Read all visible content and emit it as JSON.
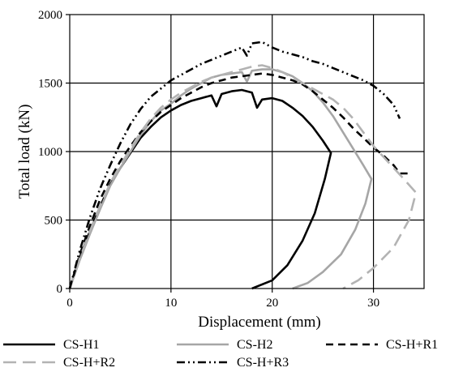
{
  "chart_data": {
    "type": "line",
    "xlabel": "Displacement (mm)",
    "ylabel": "Total load (kN)",
    "xlim": [
      0,
      35
    ],
    "ylim": [
      0,
      2000
    ],
    "xticks": [
      "0",
      "10",
      "20",
      "30"
    ],
    "xtick_values": [
      0,
      10,
      20,
      30
    ],
    "yticks": [
      "0",
      "500",
      "1000",
      "1500",
      "2000"
    ],
    "ytick_values": [
      0,
      500,
      1000,
      1500,
      2000
    ],
    "grid": true,
    "legend_position": "bottom",
    "series": [
      {
        "name": "CS-H1",
        "color": "#000000",
        "dash": "solid",
        "points": [
          [
            0,
            0
          ],
          [
            1,
            230
          ],
          [
            2,
            420
          ],
          [
            3,
            600
          ],
          [
            4,
            760
          ],
          [
            5,
            880
          ],
          [
            6,
            990
          ],
          [
            7,
            1100
          ],
          [
            8,
            1180
          ],
          [
            9,
            1250
          ],
          [
            10,
            1300
          ],
          [
            11,
            1340
          ],
          [
            12,
            1370
          ],
          [
            13,
            1390
          ],
          [
            14,
            1410
          ],
          [
            14.5,
            1330
          ],
          [
            15,
            1420
          ],
          [
            16,
            1440
          ],
          [
            17,
            1450
          ],
          [
            18,
            1430
          ],
          [
            18.5,
            1320
          ],
          [
            19,
            1380
          ],
          [
            20,
            1390
          ],
          [
            21,
            1370
          ],
          [
            22,
            1320
          ],
          [
            23,
            1260
          ],
          [
            24,
            1180
          ],
          [
            25,
            1080
          ],
          [
            25.8,
            990
          ],
          [
            25.2,
            800
          ],
          [
            24.2,
            550
          ],
          [
            23,
            350
          ],
          [
            21.5,
            170
          ],
          [
            20,
            60
          ],
          [
            18,
            0
          ]
        ]
      },
      {
        "name": "CS-H2",
        "color": "#a6a6a6",
        "dash": "solid",
        "points": [
          [
            0,
            0
          ],
          [
            1,
            210
          ],
          [
            2,
            400
          ],
          [
            3,
            580
          ],
          [
            4,
            750
          ],
          [
            5,
            880
          ],
          [
            6,
            1000
          ],
          [
            7,
            1120
          ],
          [
            8,
            1220
          ],
          [
            9,
            1300
          ],
          [
            10,
            1350
          ],
          [
            11,
            1410
          ],
          [
            12,
            1460
          ],
          [
            13,
            1500
          ],
          [
            14,
            1540
          ],
          [
            15,
            1560
          ],
          [
            16,
            1570
          ],
          [
            17,
            1580
          ],
          [
            17.5,
            1510
          ],
          [
            18,
            1590
          ],
          [
            19,
            1600
          ],
          [
            20,
            1600
          ],
          [
            21,
            1580
          ],
          [
            22,
            1550
          ],
          [
            23,
            1500
          ],
          [
            24,
            1440
          ],
          [
            25,
            1360
          ],
          [
            26,
            1260
          ],
          [
            27,
            1140
          ],
          [
            28,
            1020
          ],
          [
            29,
            900
          ],
          [
            29.8,
            800
          ],
          [
            29.2,
            620
          ],
          [
            28.2,
            430
          ],
          [
            26.8,
            250
          ],
          [
            25,
            120
          ],
          [
            23.5,
            40
          ],
          [
            22,
            0
          ]
        ]
      },
      {
        "name": "CS-H+R1",
        "color": "#000000",
        "dash": "9,6",
        "points": [
          [
            0,
            0
          ],
          [
            1,
            250
          ],
          [
            2,
            460
          ],
          [
            3,
            650
          ],
          [
            4,
            800
          ],
          [
            5,
            930
          ],
          [
            6,
            1040
          ],
          [
            7,
            1140
          ],
          [
            8,
            1220
          ],
          [
            9,
            1290
          ],
          [
            10,
            1340
          ],
          [
            11,
            1390
          ],
          [
            12,
            1430
          ],
          [
            13,
            1470
          ],
          [
            14,
            1500
          ],
          [
            15,
            1520
          ],
          [
            16,
            1540
          ],
          [
            17,
            1550
          ],
          [
            18,
            1560
          ],
          [
            19,
            1570
          ],
          [
            20,
            1560
          ],
          [
            21,
            1540
          ],
          [
            22,
            1520
          ],
          [
            23,
            1490
          ],
          [
            24,
            1440
          ],
          [
            25,
            1380
          ],
          [
            26,
            1320
          ],
          [
            27,
            1250
          ],
          [
            28,
            1170
          ],
          [
            29,
            1100
          ],
          [
            30,
            1030
          ],
          [
            31,
            970
          ],
          [
            32,
            900
          ],
          [
            32.6,
            840
          ],
          [
            33.8,
            840
          ]
        ]
      },
      {
        "name": "CS-H+R2",
        "color": "#b3b3b3",
        "dash": "16,8",
        "points": [
          [
            0,
            0
          ],
          [
            1,
            220
          ],
          [
            2,
            420
          ],
          [
            3,
            600
          ],
          [
            4,
            770
          ],
          [
            5,
            900
          ],
          [
            6,
            1020
          ],
          [
            7,
            1140
          ],
          [
            8,
            1240
          ],
          [
            9,
            1320
          ],
          [
            10,
            1380
          ],
          [
            11,
            1430
          ],
          [
            12,
            1470
          ],
          [
            13,
            1510
          ],
          [
            14,
            1540
          ],
          [
            15,
            1560
          ],
          [
            16,
            1580
          ],
          [
            17,
            1600
          ],
          [
            18,
            1620
          ],
          [
            19,
            1630
          ],
          [
            20,
            1610
          ],
          [
            21,
            1580
          ],
          [
            22,
            1540
          ],
          [
            23,
            1500
          ],
          [
            24,
            1460
          ],
          [
            25,
            1420
          ],
          [
            26,
            1380
          ],
          [
            27,
            1320
          ],
          [
            28,
            1240
          ],
          [
            29,
            1140
          ],
          [
            30,
            1040
          ],
          [
            31,
            960
          ],
          [
            32,
            880
          ],
          [
            33,
            800
          ],
          [
            34.2,
            700
          ],
          [
            33.5,
            500
          ],
          [
            32,
            300
          ],
          [
            30,
            150
          ],
          [
            28.5,
            60
          ],
          [
            27,
            0
          ]
        ]
      },
      {
        "name": "CS-H+R3",
        "color": "#000000",
        "dash": "10,4,2,4,2,4",
        "points": [
          [
            0,
            0
          ],
          [
            1,
            280
          ],
          [
            2,
            520
          ],
          [
            3,
            730
          ],
          [
            4,
            900
          ],
          [
            5,
            1060
          ],
          [
            6,
            1200
          ],
          [
            7,
            1310
          ],
          [
            8,
            1400
          ],
          [
            9,
            1460
          ],
          [
            10,
            1520
          ],
          [
            11,
            1560
          ],
          [
            12,
            1600
          ],
          [
            13,
            1640
          ],
          [
            14,
            1670
          ],
          [
            15,
            1700
          ],
          [
            16,
            1730
          ],
          [
            17,
            1760
          ],
          [
            17.5,
            1700
          ],
          [
            18,
            1790
          ],
          [
            19,
            1800
          ],
          [
            20,
            1760
          ],
          [
            21,
            1730
          ],
          [
            22,
            1710
          ],
          [
            23,
            1690
          ],
          [
            24,
            1660
          ],
          [
            25,
            1640
          ],
          [
            26,
            1610
          ],
          [
            27,
            1580
          ],
          [
            28,
            1550
          ],
          [
            29,
            1520
          ],
          [
            30,
            1480
          ],
          [
            31,
            1420
          ],
          [
            32,
            1340
          ],
          [
            32.6,
            1240
          ]
        ]
      }
    ]
  }
}
